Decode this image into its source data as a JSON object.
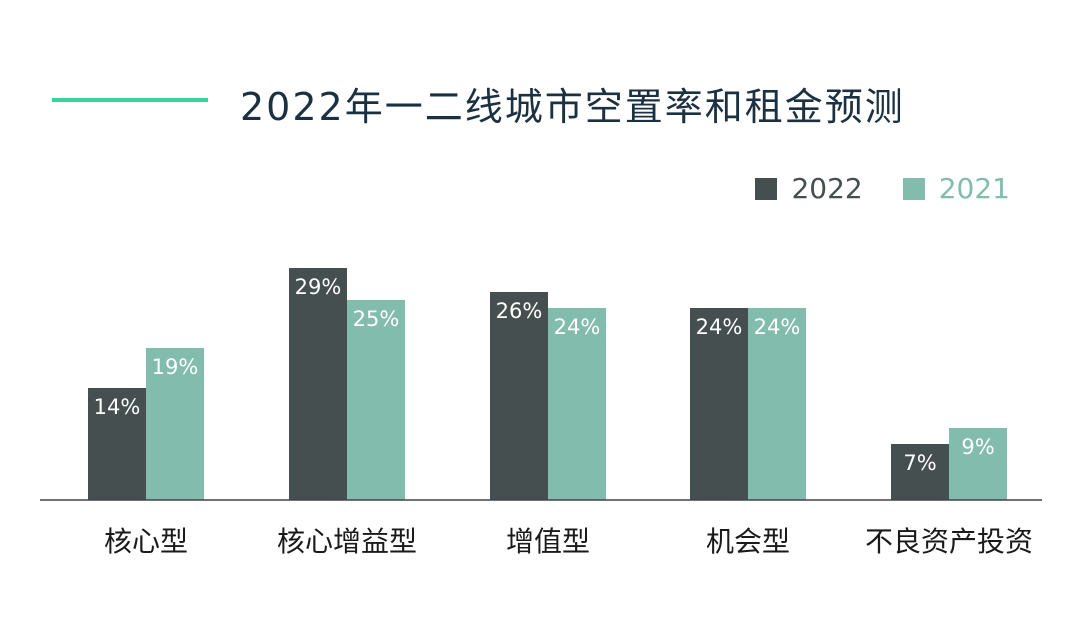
{
  "title": "2022年一二线城市空置率和租金预测",
  "colors": {
    "accent_line": "#35d49a",
    "title": "#1b3040"
  },
  "chart_data": {
    "type": "bar",
    "title": "2022年一二线城市空置率和租金预测",
    "categories": [
      "核心型",
      "核心增益型",
      "增值型",
      "机会型",
      "不良资产投资"
    ],
    "series": [
      {
        "name": "2022",
        "values": [
          14,
          29,
          26,
          24,
          7
        ],
        "labels": [
          "14%",
          "29%",
          "26%",
          "24%",
          "7%"
        ],
        "color": "#454f50",
        "legend_text_color": "#454f50"
      },
      {
        "name": "2021",
        "values": [
          19,
          25,
          24,
          24,
          9
        ],
        "labels": [
          "19%",
          "25%",
          "24%",
          "24%",
          "9%"
        ],
        "color": "#82bcad",
        "legend_text_color": "#82bcad"
      }
    ],
    "xlabel": "",
    "ylabel": "",
    "ylim": [
      0,
      30
    ],
    "grid": false,
    "legend": "top-right"
  }
}
